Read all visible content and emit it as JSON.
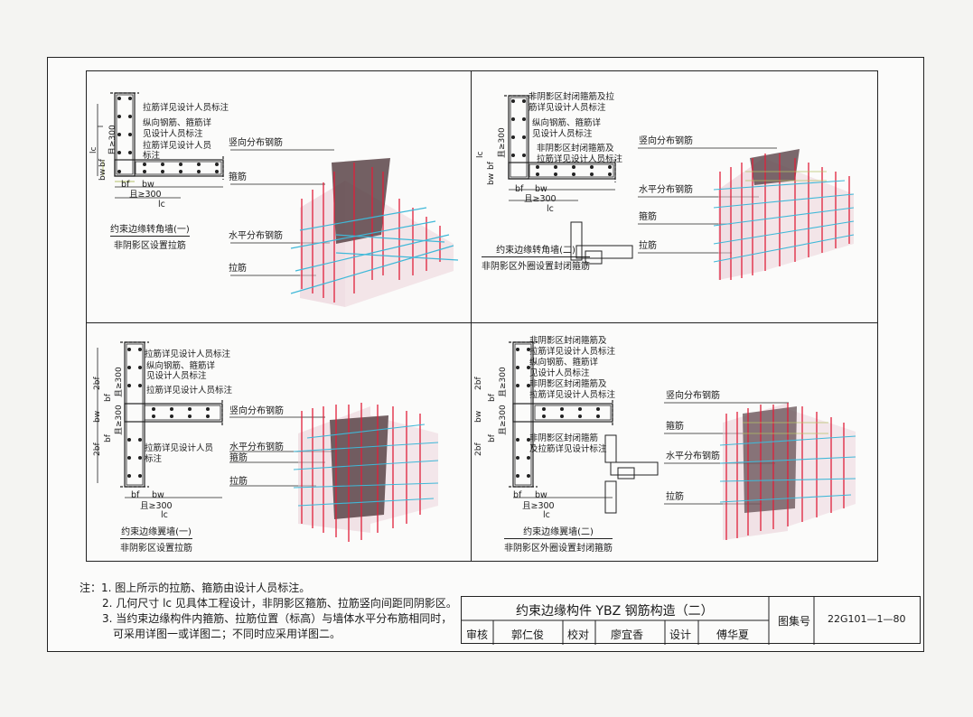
{
  "panels": {
    "p1": {
      "labels": [
        "拉筋详见设计人员标注",
        "纵向钢筋、箍筋详",
        "见设计人员标注",
        "拉筋详见设计人员",
        "标注"
      ],
      "dims": {
        "lc": "lc",
        "bf": "bf",
        "ge300": "且≥300",
        "bw": "bw"
      },
      "callouts": [
        "竖向分布钢筋",
        "箍筋",
        "水平分布钢筋",
        "拉筋"
      ],
      "title": "约束边缘转角墙(一)",
      "subtitle": "非阴影区设置拉筋"
    },
    "p2": {
      "labels": [
        "非阴影区封闭箍筋及拉",
        "筋详见设计人员标注",
        "纵向钢筋、箍筋详",
        "见设计人员标注",
        "非阴影区封闭箍筋及",
        "拉筋详见设计人员标注"
      ],
      "dims": {
        "lc": "lc",
        "bf": "bf",
        "ge300": "且≥300",
        "bw": "bw"
      },
      "callouts": [
        "竖向分布钢筋",
        "水平分布钢筋",
        "箍筋",
        "拉筋"
      ],
      "title": "约束边缘转角墙(二)",
      "subtitle": "非阴影区外圈设置封闭箍筋"
    },
    "p3": {
      "labels": [
        "拉筋详见设计人员标注",
        "纵向钢筋、箍筋详",
        "见设计人员标注",
        "拉筋详见设计人员标注",
        "拉筋详见设计人员",
        "标注"
      ],
      "dims": {
        "2bf": "2bf",
        "bf": "bf",
        "ge300": "且≥300",
        "bw": "bw",
        "lc": "lc"
      },
      "callouts": [
        "竖向分布钢筋",
        "水平分布钢筋",
        "箍筋",
        "拉筋"
      ],
      "title": "约束边缘翼墙(一)",
      "subtitle": "非阴影区设置拉筋"
    },
    "p4": {
      "labels": [
        "非阴影区封闭箍筋及",
        "拉筋详见设计人员标注",
        "纵向钢筋、箍筋详",
        "见设计人员标注",
        "非阴影区封闭箍筋及",
        "拉筋详见设计人员标注",
        "非阴影区封闭箍筋",
        "及拉筋详见设计标注"
      ],
      "dims": {
        "2bf": "2bf",
        "bf": "bf",
        "ge300": "且≥300",
        "bw": "bw",
        "lc": "lc"
      },
      "callouts": [
        "竖向分布钢筋",
        "箍筋",
        "水平分布钢筋",
        "拉筋"
      ],
      "title": "约束边缘翼墙(二)",
      "subtitle": "非阴影区外圈设置封闭箍筋"
    }
  },
  "notes": [
    "注：1. 图上所示的拉筋、箍筋由设计人员标注。",
    "2. 几何尺寸 lc 见具体工程设计，非阴影区箍筋、拉筋竖向间距同阴影区。",
    "3. 当约束边缘构件内箍筋、拉筋位置（标高）与墙体水平分布筋相同时，",
    "可采用详图一或详图二；不同时应采用详图二。"
  ],
  "titleblock": {
    "title": "约束边缘构件 YBZ 钢筋构造（二）",
    "atlas_label": "图集号",
    "atlas_no": "22G101—1—80",
    "review_label": "审核",
    "reviewer": "郭仁俊",
    "check_label": "校对",
    "checker": "廖宜香",
    "design_label": "设计",
    "designer": "傅华夏"
  },
  "colors": {
    "rebar_red": "#e0203a",
    "rebar_cyan": "#3fb8d8",
    "concrete": "#5a4448",
    "wall_tint": "#e8c9d2",
    "dim_green": "#b6c26a"
  }
}
